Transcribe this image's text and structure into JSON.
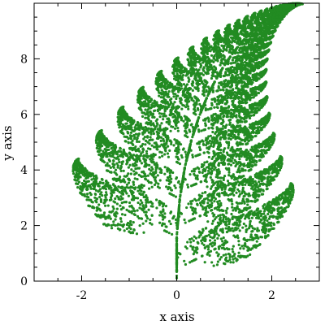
{
  "chart_data": {
    "type": "scatter",
    "title": "",
    "xlabel": "x axis",
    "ylabel": "y axis",
    "xlim": [
      -3,
      3
    ],
    "ylim": [
      0,
      10
    ],
    "x_ticks": [
      -2,
      0,
      2
    ],
    "y_ticks": [
      0,
      2,
      4,
      6,
      8
    ],
    "x_tick_labels": [
      "-2",
      "0",
      "2"
    ],
    "y_tick_labels": [
      "0",
      "2",
      "4",
      "6",
      "8"
    ],
    "grid": false,
    "legend": "none",
    "series": [
      {
        "color": "#228b22",
        "description_of_data": "Barnsley fern (iterated function system)",
        "ifs_maps": [
          {
            "a": 0.0,
            "b": 0.0,
            "c": 0.0,
            "d": 0.16,
            "e": 0.0,
            "f": 0.0,
            "p": 0.01
          },
          {
            "a": 0.85,
            "b": 0.04,
            "c": -0.04,
            "d": 0.85,
            "e": 0.0,
            "f": 1.6,
            "p": 0.85
          },
          {
            "a": 0.2,
            "b": -0.26,
            "c": 0.23,
            "d": 0.22,
            "e": 0.0,
            "f": 1.6,
            "p": 0.07
          },
          {
            "a": -0.15,
            "b": 0.28,
            "c": 0.26,
            "d": 0.24,
            "e": 0.0,
            "f": 0.44,
            "p": 0.07
          }
        ]
      }
    ]
  }
}
